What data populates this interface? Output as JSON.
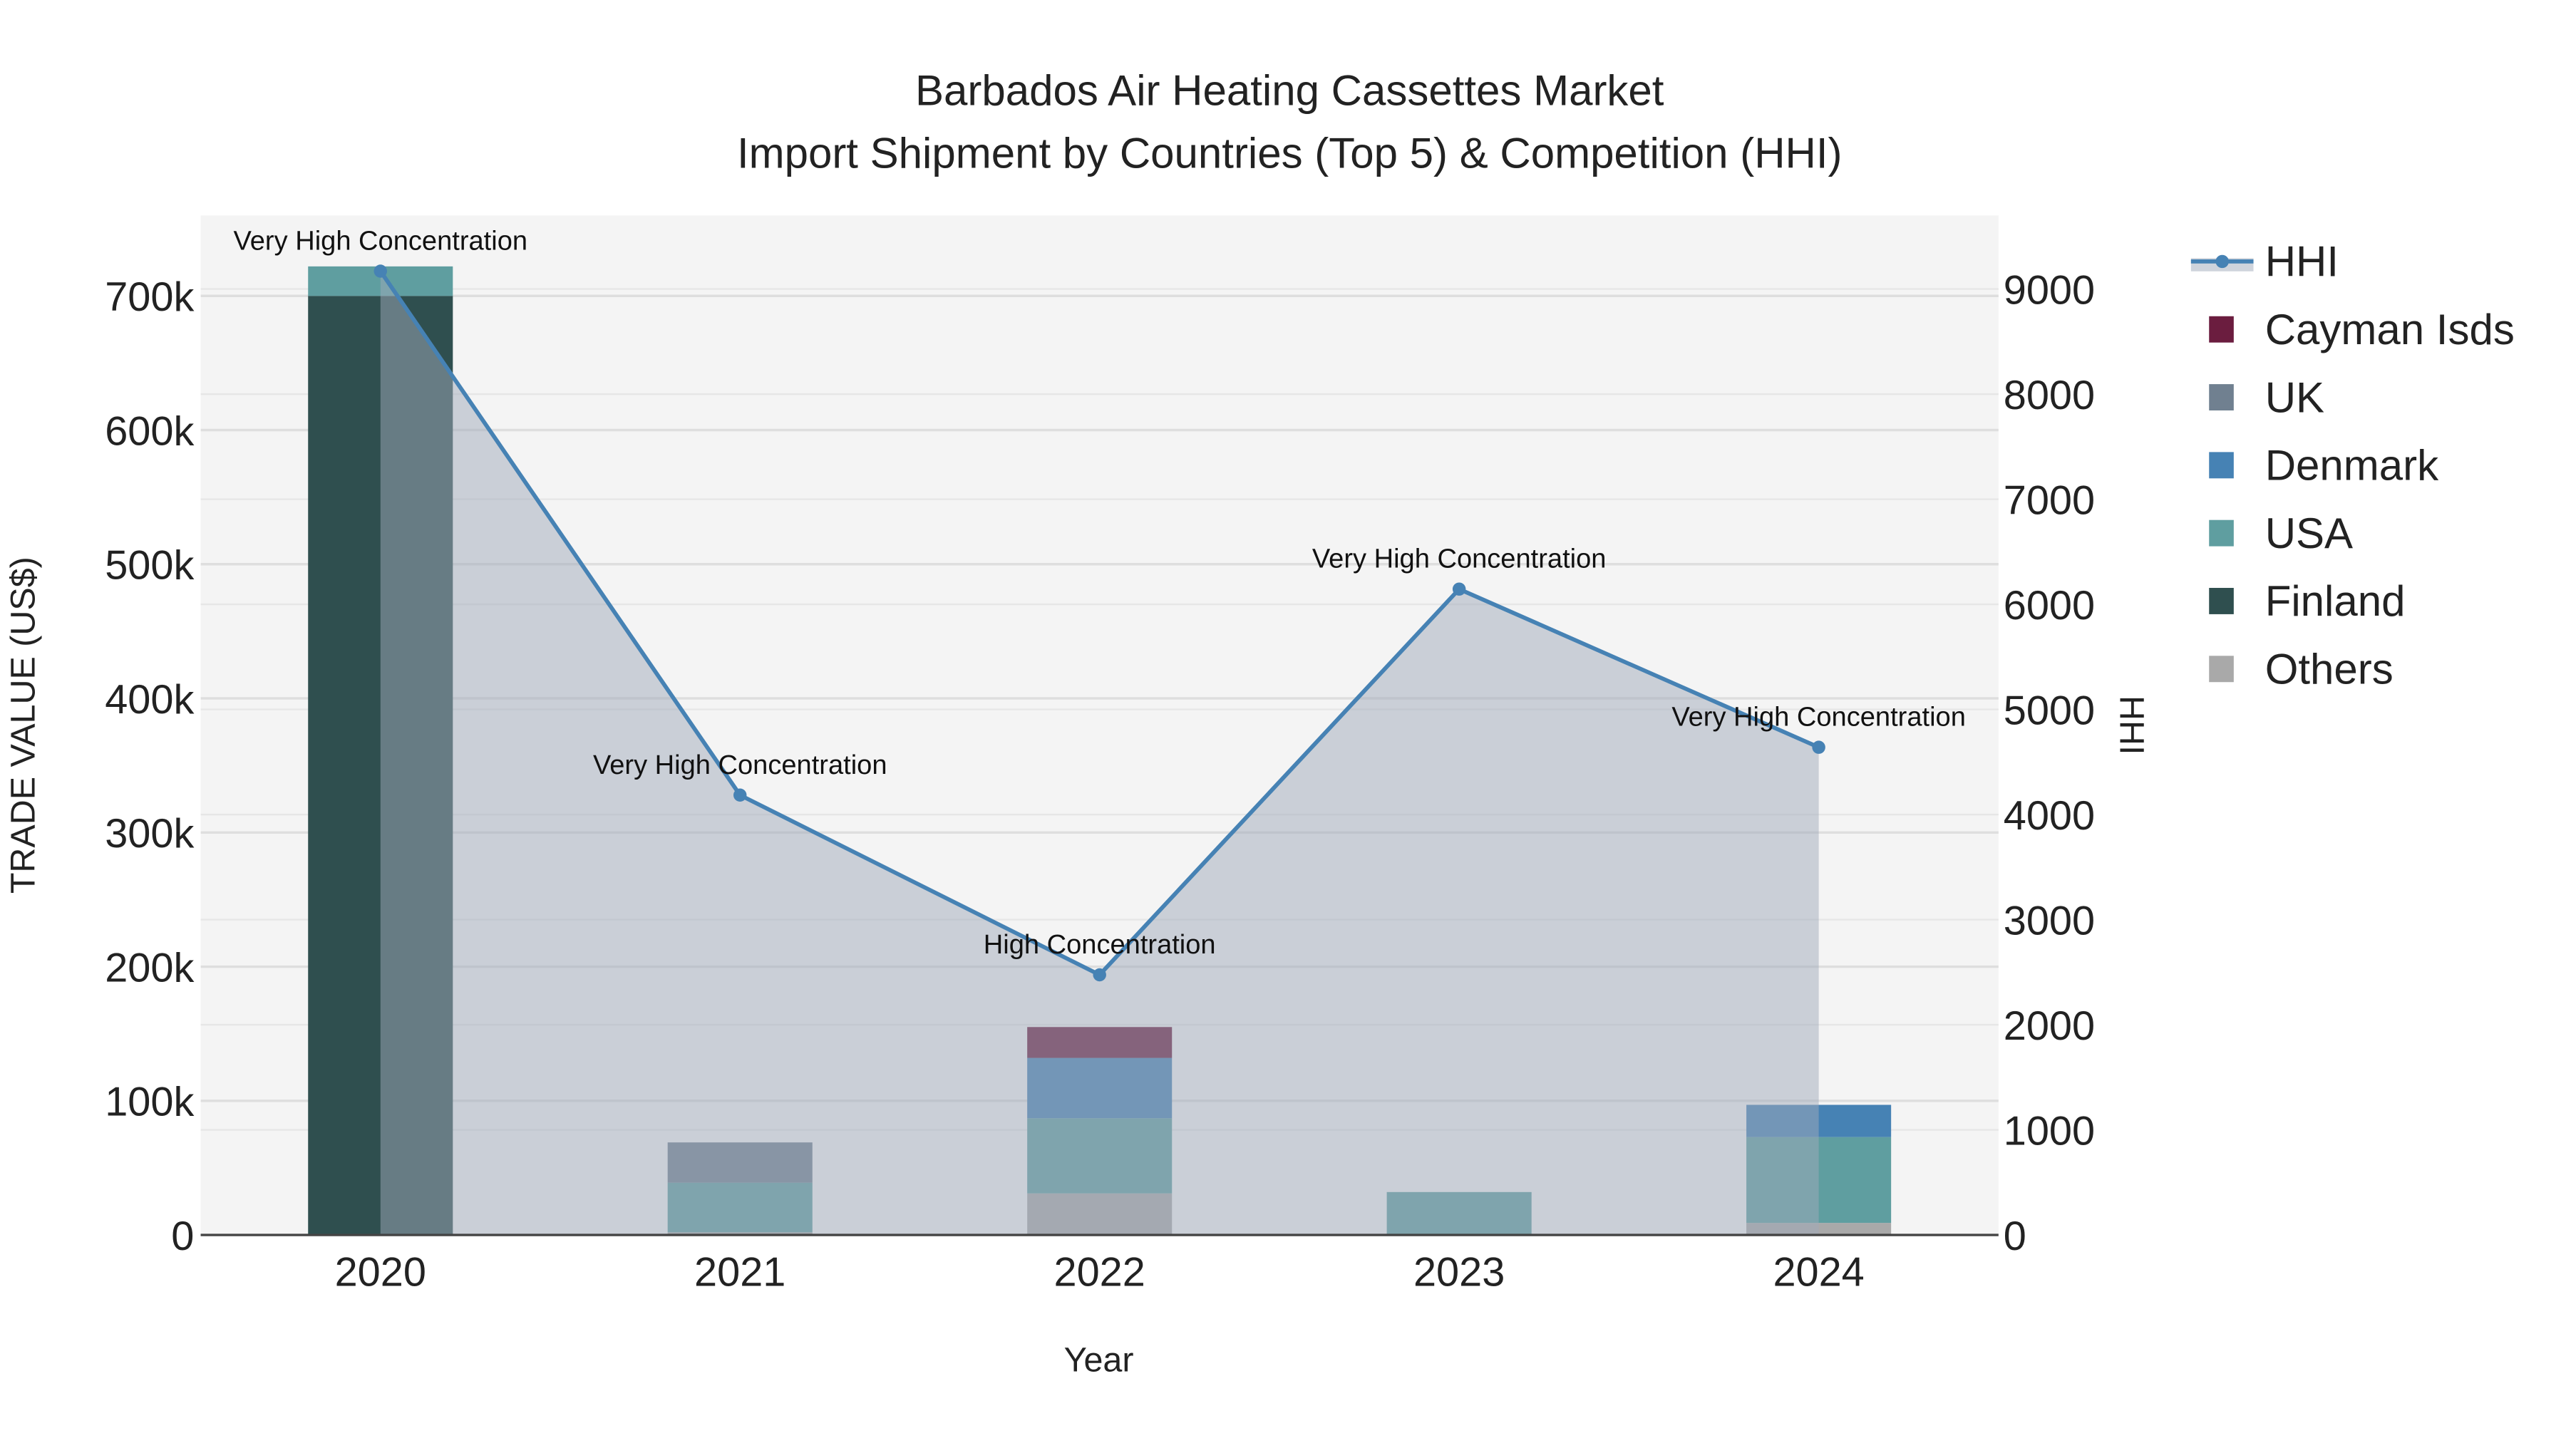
{
  "chart_data": {
    "type": "bar",
    "title": "Barbados Air Heating Cassettes Market",
    "subtitle": "Import Shipment by Countries (Top 5) & Competition (HHI)",
    "xlabel": "Year",
    "ylabel": "TRADE VALUE (US$)",
    "y2label": "HHI",
    "categories": [
      "2020",
      "2021",
      "2022",
      "2023",
      "2024"
    ],
    "ylim": [
      0,
      760000
    ],
    "y_ticks": [
      0,
      100000,
      200000,
      300000,
      400000,
      500000,
      600000,
      700000
    ],
    "y_tick_labels": [
      "0",
      "100k",
      "200k",
      "300k",
      "400k",
      "500k",
      "600k",
      "700k"
    ],
    "y2lim": [
      0,
      9700
    ],
    "y2_ticks": [
      0,
      1000,
      2000,
      3000,
      4000,
      5000,
      6000,
      7000,
      8000,
      9000
    ],
    "y2_tick_labels": [
      "0",
      "1000",
      "2000",
      "3000",
      "4000",
      "5000",
      "6000",
      "7000",
      "8000",
      "9000"
    ],
    "stack_order": [
      "Others",
      "Finland",
      "USA",
      "Denmark",
      "UK",
      "Cayman Isds"
    ],
    "series": [
      {
        "name": "Cayman Isds",
        "color": "#6b1d3f",
        "values": [
          0,
          0,
          23000,
          0,
          0
        ]
      },
      {
        "name": "UK",
        "color": "#708090",
        "values": [
          0,
          30000,
          0,
          0,
          0
        ]
      },
      {
        "name": "Denmark",
        "color": "#4682b4",
        "values": [
          0,
          0,
          45000,
          0,
          24000
        ]
      },
      {
        "name": "USA",
        "color": "#5f9ea0",
        "values": [
          22000,
          37000,
          56000,
          32000,
          64000
        ]
      },
      {
        "name": "Finland",
        "color": "#2f4f4f",
        "values": [
          700000,
          0,
          0,
          0,
          0
        ]
      },
      {
        "name": "Others",
        "color": "#a9a9a9",
        "values": [
          0,
          2000,
          31000,
          0,
          9000
        ]
      }
    ],
    "hhi": {
      "name": "HHI",
      "color": "#4682b4",
      "values": [
        9170,
        4185,
        2475,
        6145,
        4640
      ],
      "annotations": [
        "Very High Concentration",
        "Very High Concentration",
        "High Concentration",
        "Very High Concentration",
        "Very High Concentration"
      ]
    },
    "legend": {
      "placement": "right",
      "entries": [
        "HHI",
        "Cayman Isds",
        "UK",
        "Denmark",
        "USA",
        "Finland",
        "Others"
      ]
    },
    "grid": true
  }
}
